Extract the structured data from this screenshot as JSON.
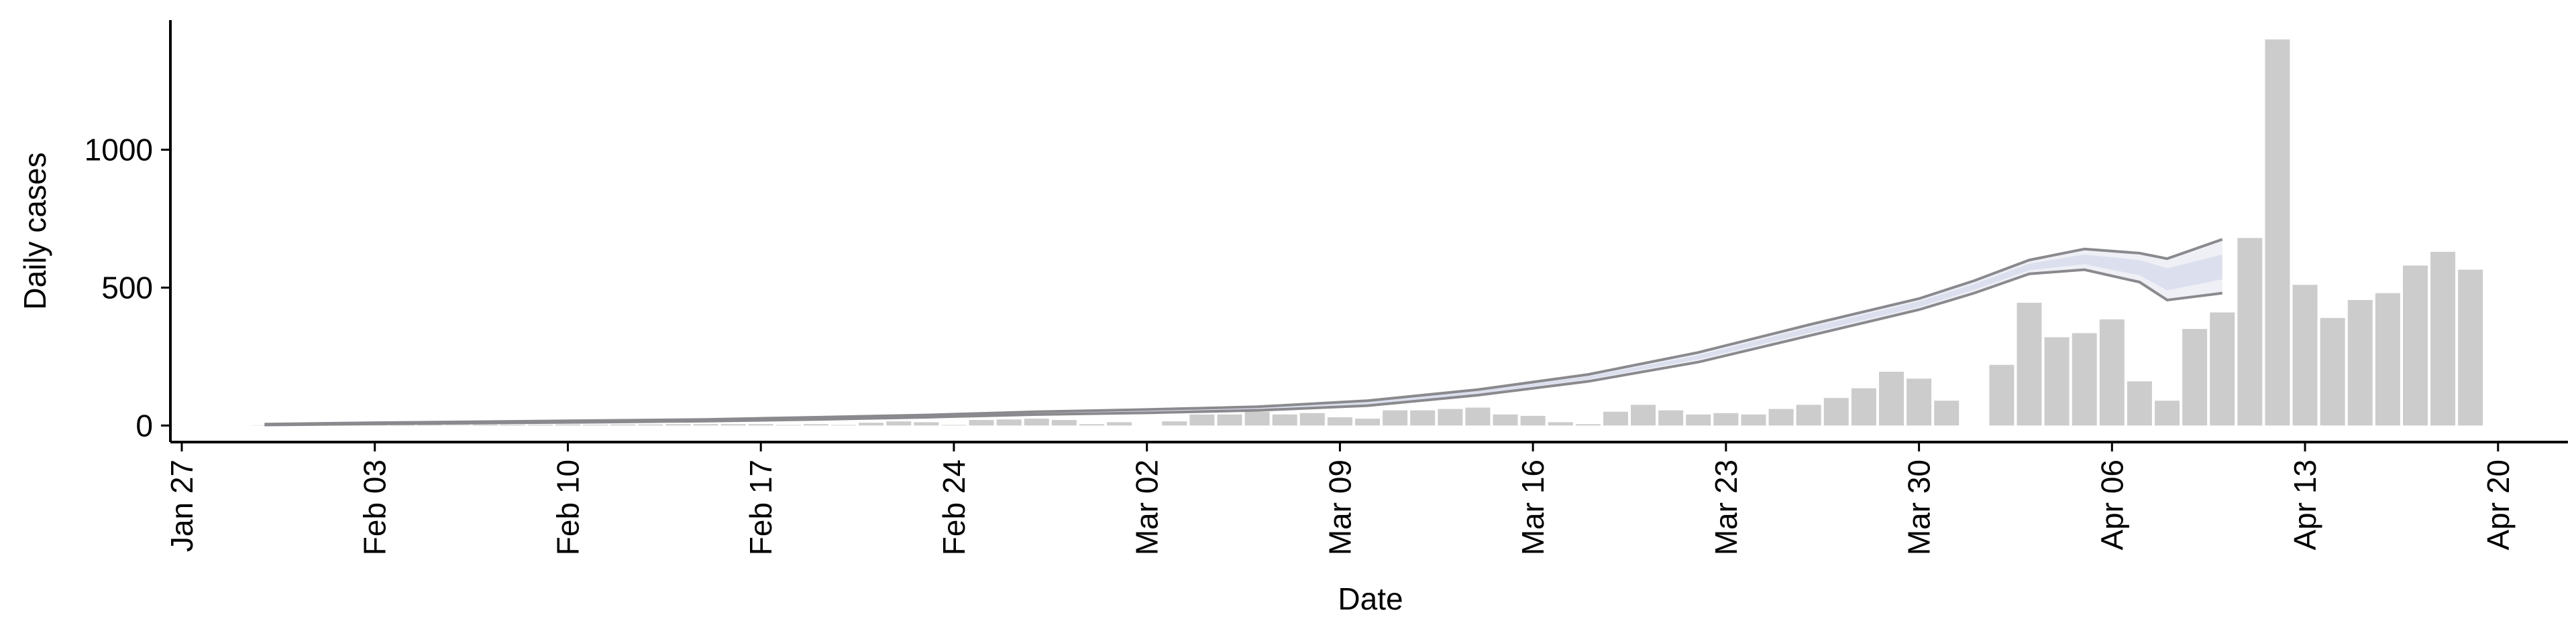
{
  "chart_data": {
    "type": "bar",
    "xlabel": "Date",
    "ylabel": "Daily cases",
    "x": [
      "Jan 30",
      "Jan 31",
      "Feb 01",
      "Feb 02",
      "Feb 03",
      "Feb 04",
      "Feb 05",
      "Feb 06",
      "Feb 07",
      "Feb 08",
      "Feb 09",
      "Feb 10",
      "Feb 11",
      "Feb 12",
      "Feb 13",
      "Feb 14",
      "Feb 15",
      "Feb 16",
      "Feb 17",
      "Feb 18",
      "Feb 19",
      "Feb 20",
      "Feb 21",
      "Feb 22",
      "Feb 23",
      "Feb 24",
      "Feb 25",
      "Feb 26",
      "Feb 27",
      "Feb 28",
      "Feb 29",
      "Mar 01",
      "Mar 02",
      "Mar 03",
      "Mar 04",
      "Mar 05",
      "Mar 06",
      "Mar 07",
      "Mar 08",
      "Mar 09",
      "Mar 10",
      "Mar 11",
      "Mar 12",
      "Mar 13",
      "Mar 14",
      "Mar 15",
      "Mar 16",
      "Mar 17",
      "Mar 18",
      "Mar 19",
      "Mar 20",
      "Mar 21",
      "Mar 22",
      "Mar 23",
      "Mar 24",
      "Mar 25",
      "Mar 26",
      "Mar 27",
      "Mar 28",
      "Mar 29",
      "Mar 30",
      "Mar 31",
      "Apr 01",
      "Apr 02",
      "Apr 03",
      "Apr 04",
      "Apr 05",
      "Apr 06",
      "Apr 07",
      "Apr 08",
      "Apr 09",
      "Apr 10",
      "Apr 11",
      "Apr 12",
      "Apr 13",
      "Apr 14",
      "Apr 15",
      "Apr 16",
      "Apr 17",
      "Apr 18",
      "Apr 19"
    ],
    "values": [
      1,
      1,
      1,
      2,
      2,
      2,
      3,
      2,
      3,
      3,
      3,
      4,
      3,
      4,
      4,
      5,
      5,
      5,
      5,
      2,
      5,
      2,
      10,
      15,
      12,
      2,
      20,
      22,
      25,
      20,
      5,
      12,
      0,
      15,
      40,
      40,
      50,
      40,
      45,
      30,
      25,
      55,
      55,
      60,
      65,
      40,
      35,
      12,
      5,
      50,
      75,
      55,
      40,
      45,
      40,
      60,
      75,
      100,
      135,
      195,
      170,
      90,
      null,
      220,
      445,
      320,
      335,
      385,
      160,
      90,
      350,
      410,
      680,
      1400,
      510,
      390,
      455,
      480,
      580,
      630,
      565
    ],
    "color": "#cccccc",
    "ribbon": {
      "type": "ribbon",
      "x": [
        "Jan 30",
        "Feb 03",
        "Feb 07",
        "Feb 11",
        "Feb 15",
        "Feb 19",
        "Feb 23",
        "Feb 27",
        "Mar 02",
        "Mar 06",
        "Mar 10",
        "Mar 14",
        "Mar 18",
        "Mar 22",
        "Mar 26",
        "Mar 30",
        "Apr 01",
        "Apr 03",
        "Apr 05",
        "Apr 07",
        "Apr 08",
        "Apr 10"
      ],
      "outer_upper": [
        5,
        10,
        14,
        18,
        22,
        30,
        38,
        50,
        58,
        68,
        90,
        130,
        185,
        265,
        365,
        460,
        525,
        600,
        640,
        625,
        605,
        675
      ],
      "outer_lower": [
        2,
        6,
        9,
        12,
        16,
        22,
        30,
        40,
        46,
        55,
        72,
        110,
        160,
        230,
        325,
        420,
        480,
        550,
        565,
        520,
        455,
        480
      ],
      "inner_upper": [
        4,
        9,
        13,
        16,
        20,
        28,
        36,
        47,
        55,
        65,
        85,
        125,
        178,
        255,
        355,
        450,
        513,
        587,
        620,
        600,
        570,
        620
      ],
      "inner_lower": [
        3,
        7,
        10,
        14,
        18,
        24,
        32,
        43,
        49,
        58,
        77,
        115,
        167,
        240,
        335,
        430,
        492,
        563,
        585,
        545,
        490,
        530
      ],
      "line_color": "#8a8a8e",
      "outer_fill": "#eef0f6",
      "inner_fill": "#dcdfee"
    },
    "xlim": [
      "Jan 27",
      "Apr 22"
    ],
    "xticks": [
      "Jan 27",
      "Feb 03",
      "Feb 10",
      "Feb 17",
      "Feb 24",
      "Mar 02",
      "Mar 09",
      "Mar 16",
      "Mar 23",
      "Mar 30",
      "Apr 06",
      "Apr 13",
      "Apr 20"
    ],
    "ylim": [
      -60,
      1470
    ],
    "yticks": [
      0,
      500,
      1000
    ]
  }
}
